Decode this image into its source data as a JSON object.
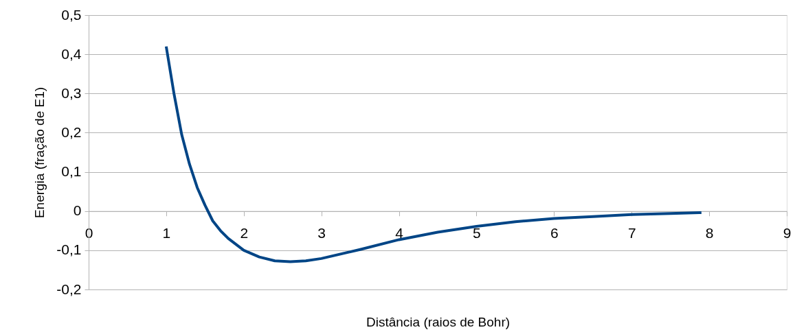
{
  "chart_data": {
    "type": "line",
    "xlabel": "Distância (raios de Bohr)",
    "ylabel": "Energia (fração de E1)",
    "x": [
      1.0,
      1.1,
      1.2,
      1.3,
      1.4,
      1.5,
      1.6,
      1.7,
      1.8,
      2.0,
      2.2,
      2.4,
      2.6,
      2.8,
      3.0,
      3.5,
      4.0,
      4.5,
      5.0,
      5.5,
      6.0,
      6.5,
      7.0,
      7.5,
      7.9
    ],
    "series": [
      {
        "color": "#004586",
        "values": [
          0.42,
          0.3,
          0.195,
          0.12,
          0.06,
          0.015,
          -0.025,
          -0.05,
          -0.07,
          -0.1,
          -0.117,
          -0.127,
          -0.129,
          -0.127,
          -0.121,
          -0.098,
          -0.073,
          -0.054,
          -0.039,
          -0.027,
          -0.019,
          -0.014,
          -0.009,
          -0.006,
          -0.004
        ]
      }
    ],
    "xlim": [
      0,
      9
    ],
    "xticks": [
      0,
      1,
      2,
      3,
      4,
      5,
      6,
      7,
      8,
      9
    ],
    "ylim": [
      -0.2,
      0.5
    ],
    "yticks": [
      {
        "value": -0.2,
        "label": "-0,2"
      },
      {
        "value": -0.1,
        "label": "-0,1"
      },
      {
        "value": 0,
        "label": "0"
      },
      {
        "value": 0.1,
        "label": "0,1"
      },
      {
        "value": 0.2,
        "label": "0,2"
      },
      {
        "value": 0.3,
        "label": "0,3"
      },
      {
        "value": 0.4,
        "label": "0,4"
      },
      {
        "value": 0.5,
        "label": "0,5"
      }
    ],
    "grid": "y",
    "legend": false,
    "marker": "none",
    "line_style": "solid"
  }
}
